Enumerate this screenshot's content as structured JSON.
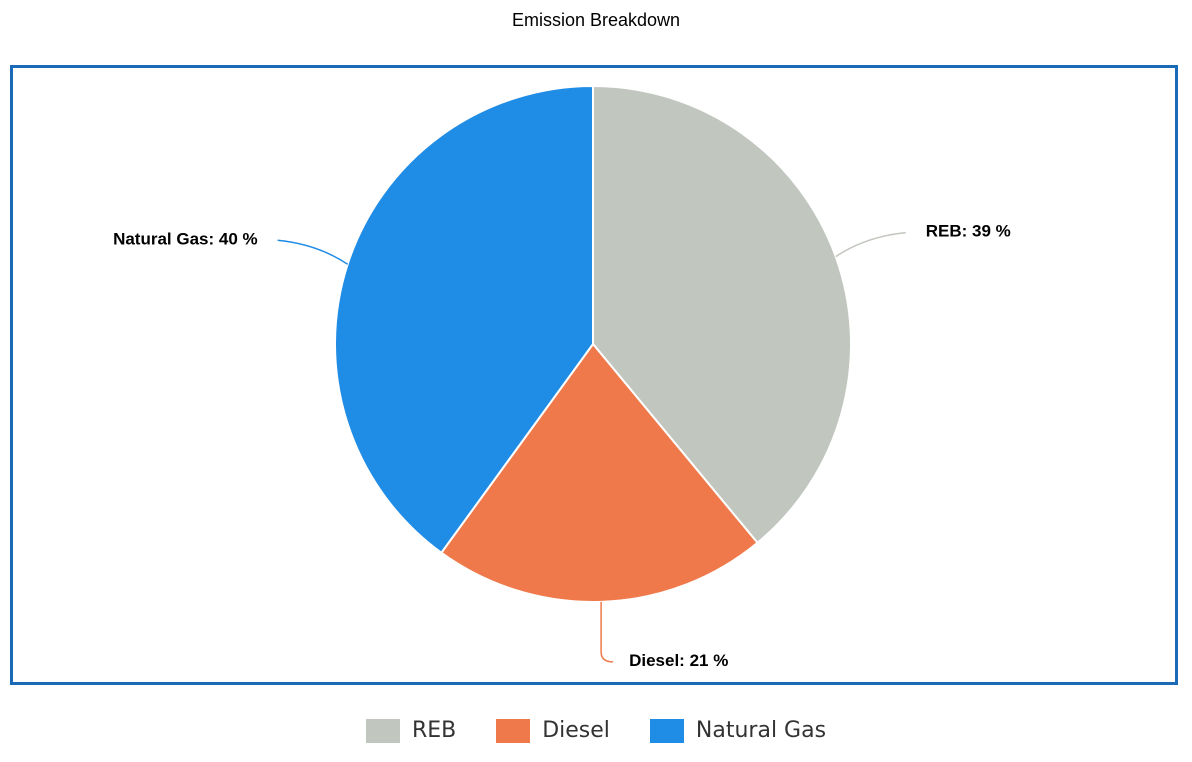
{
  "chart_data": {
    "type": "pie",
    "title": "Emission Breakdown",
    "legend_position": "bottom",
    "slices": [
      {
        "name": "REB",
        "value": 39,
        "label": "REB: 39 %",
        "color": "#c1c6bf"
      },
      {
        "name": "Diesel",
        "value": 21,
        "label": "Diesel: 21 %",
        "color": "#ef794a"
      },
      {
        "name": "Natural Gas",
        "value": 40,
        "label": "Natural Gas: 40 %",
        "color": "#1f8ce6"
      }
    ]
  },
  "frame_color": "#1b6ab8"
}
